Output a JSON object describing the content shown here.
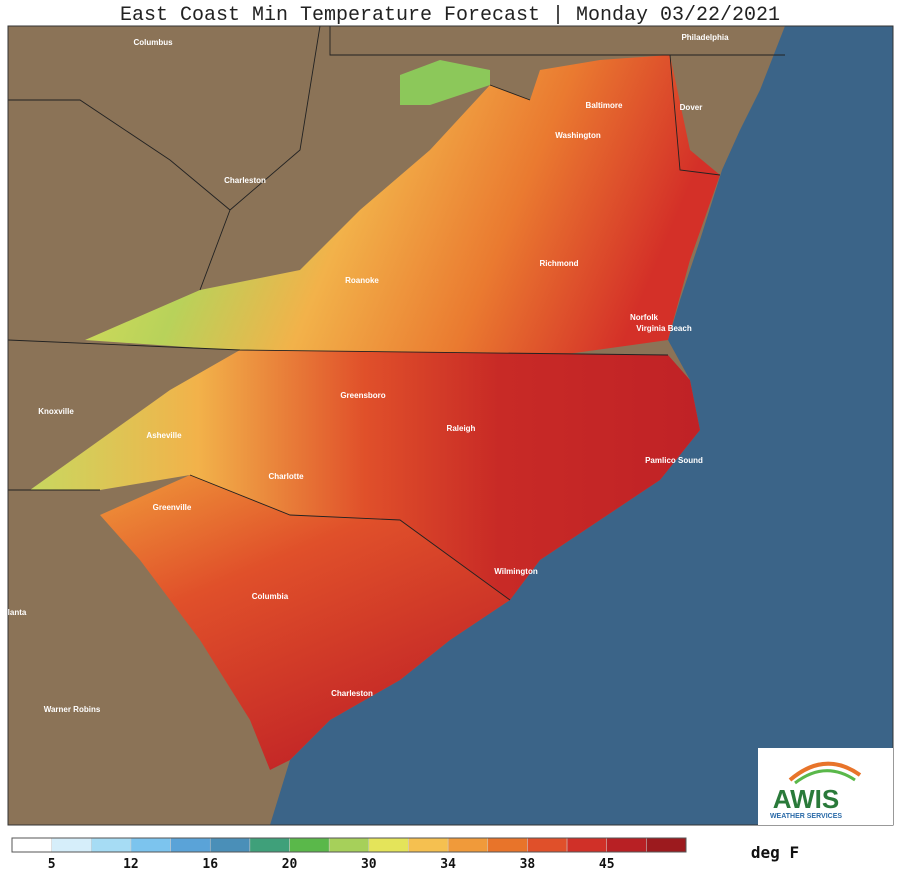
{
  "header": {
    "title": "East Coast Min Temperature Forecast | Monday 03/22/2021"
  },
  "map": {
    "cities": [
      "Columbus",
      "Philadelphia",
      "Baltimore",
      "Dover",
      "Washington",
      "Charleston",
      "Richmond",
      "Roanoke",
      "Norfolk",
      "Virginia Beach",
      "Knoxville",
      "Greensboro",
      "Raleigh",
      "Asheville",
      "Pamlico Sound",
      "Charlotte",
      "Greenville",
      "Wilmington",
      "lanta",
      "Columbia",
      "Charleston",
      "Warner Robins"
    ]
  },
  "legend": {
    "colors": [
      "#ffffff",
      "#d6eefa",
      "#a6dcf4",
      "#7cc4ee",
      "#5aa3d8",
      "#4a8fb8",
      "#3fa07a",
      "#5ab84a",
      "#a6d05a",
      "#e4e45a",
      "#f5c050",
      "#f09a3a",
      "#e8742a",
      "#e0502a",
      "#d03028",
      "#b82024",
      "#9c1a1e"
    ],
    "labels": [
      5,
      12,
      16,
      20,
      30,
      34,
      38,
      45
    ],
    "unit": "deg F"
  },
  "logo": {
    "name": "AWIS",
    "tagline": "WEATHER SERVICES"
  }
}
